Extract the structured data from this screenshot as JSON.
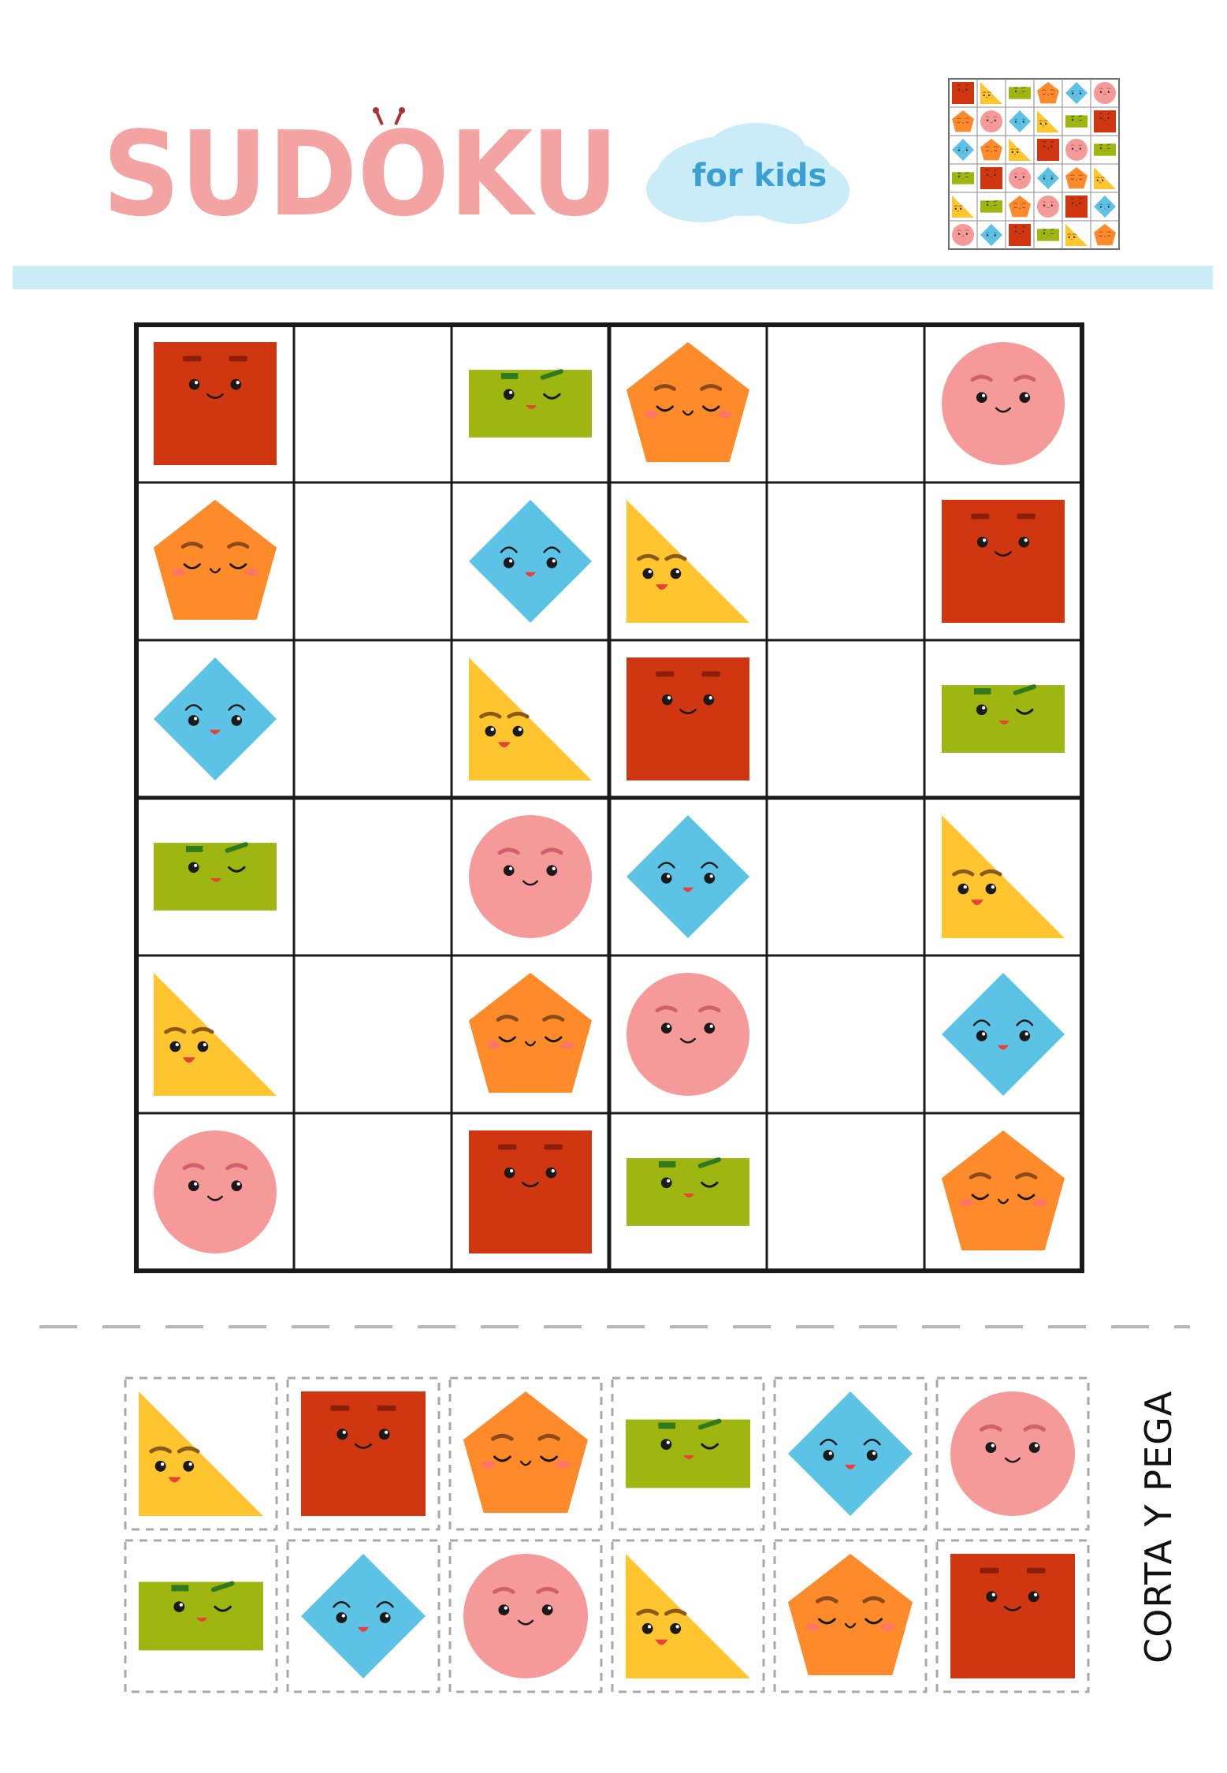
{
  "title": {
    "main": "SUDOKU",
    "subtitle": "for kids"
  },
  "colors": {
    "title_pink": "#f4a3a3",
    "subtitle_blue": "#3a9fd1",
    "cloud": "#c9ecf8",
    "divider": "#c9ecf8",
    "square": "#d0360f",
    "rectangle": "#9fb510",
    "pentagon": "#ff8a2a",
    "circle": "#f59a98",
    "rhombus": "#5cc3e6",
    "triangle": "#fec52e"
  },
  "board": {
    "size": 6,
    "box": "2x3",
    "grid": [
      [
        "square",
        "",
        "rectangle",
        "pentagon",
        "",
        "circle"
      ],
      [
        "pentagon",
        "",
        "rhombus",
        "triangle",
        "",
        "square"
      ],
      [
        "rhombus",
        "",
        "triangle",
        "square",
        "",
        "rectangle"
      ],
      [
        "rectangle",
        "",
        "circle",
        "rhombus",
        "",
        "triangle"
      ],
      [
        "triangle",
        "",
        "pentagon",
        "circle",
        "",
        "rhombus"
      ],
      [
        "circle",
        "",
        "square",
        "rectangle",
        "",
        "pentagon"
      ]
    ]
  },
  "solution_preview": {
    "grid": [
      [
        "square",
        "triangle",
        "rectangle",
        "pentagon",
        "rhombus",
        "circle"
      ],
      [
        "pentagon",
        "circle",
        "rhombus",
        "triangle",
        "rectangle",
        "square"
      ],
      [
        "rhombus",
        "pentagon",
        "triangle",
        "square",
        "circle",
        "rectangle"
      ],
      [
        "rectangle",
        "square",
        "circle",
        "rhombus",
        "pentagon",
        "triangle"
      ],
      [
        "triangle",
        "rectangle",
        "pentagon",
        "circle",
        "square",
        "rhombus"
      ],
      [
        "circle",
        "rhombus",
        "square",
        "rectangle",
        "triangle",
        "pentagon"
      ]
    ]
  },
  "pieces": {
    "rows": [
      [
        "triangle",
        "square",
        "pentagon",
        "rectangle",
        "rhombus",
        "circle"
      ],
      [
        "rectangle",
        "rhombus",
        "circle",
        "triangle",
        "pentagon",
        "square"
      ]
    ]
  },
  "instruction": "CORTA Y PEGA"
}
